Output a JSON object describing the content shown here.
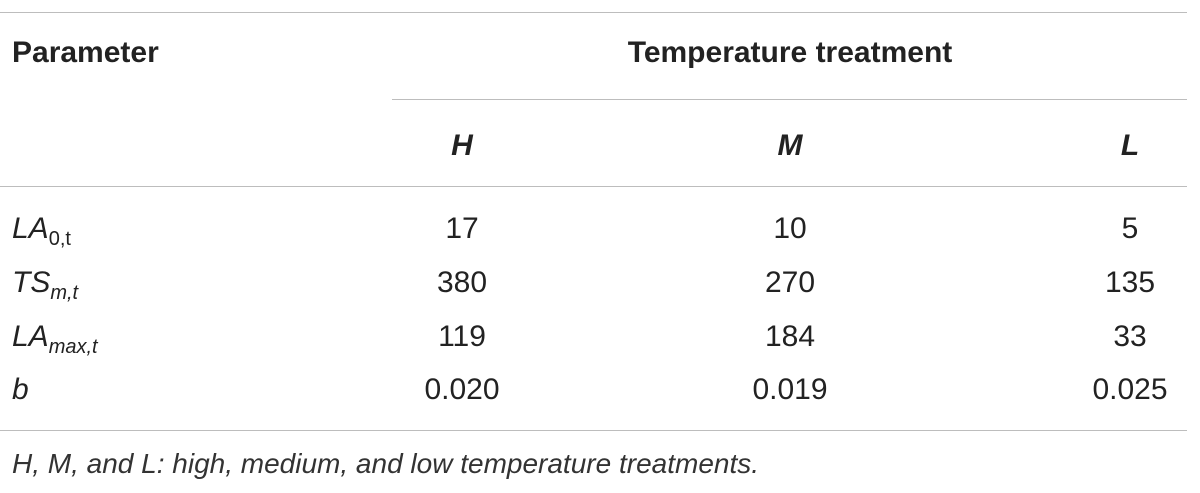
{
  "table": {
    "header": {
      "parameter_label": "Parameter",
      "group_label": "Temperature treatment",
      "columns": [
        "H",
        "M",
        "L"
      ]
    },
    "rows": [
      {
        "param_main": "LA",
        "param_sub": "0,t",
        "values": [
          "17",
          "10",
          "5"
        ]
      },
      {
        "param_main": "TS",
        "param_sub": "m,t",
        "values": [
          "380",
          "270",
          "135"
        ]
      },
      {
        "param_main": "LA",
        "param_sub": "max,t",
        "values": [
          "119",
          "184",
          "33"
        ]
      },
      {
        "param_main": "b",
        "param_sub": "",
        "values": [
          "0.020",
          "0.019",
          "0.025"
        ]
      }
    ],
    "footnote": "H, M, and L: high, medium, and low temperature treatments."
  }
}
